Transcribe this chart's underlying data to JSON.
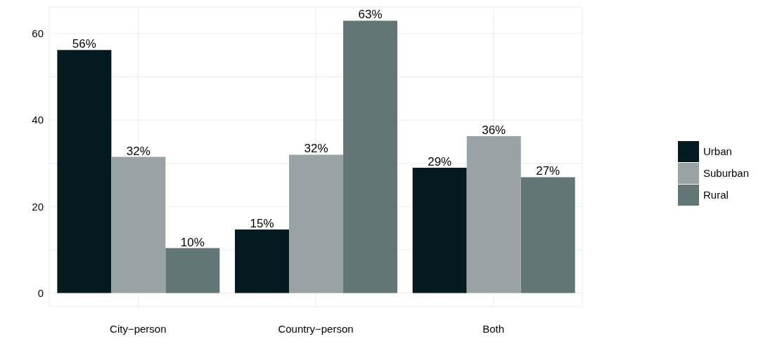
{
  "chart_data": {
    "type": "bar",
    "categories": [
      "City−person",
      "Country−person",
      "Both"
    ],
    "series": [
      {
        "name": "Urban",
        "color": "#021a20",
        "values": [
          56.2,
          14.7,
          29.0
        ],
        "value_labels": [
          "56%",
          "15%",
          "29%"
        ]
      },
      {
        "name": "Suburban",
        "color": "#99a3a6",
        "values": [
          31.5,
          32.0,
          36.3
        ],
        "value_labels": [
          "32%",
          "32%",
          "36%"
        ]
      },
      {
        "name": "Rural",
        "color": "#637677",
        "values": [
          10.4,
          63.0,
          26.8
        ],
        "value_labels": [
          "10%",
          "63%",
          "27%"
        ]
      }
    ],
    "ylim": [
      -3.15,
      66.15
    ],
    "yticks": [
      0,
      {
        "value": 10,
        "label": null
      },
      20,
      {
        "value": 30,
        "label": null
      },
      40,
      {
        "value": 50,
        "label": null
      },
      60
    ],
    "grid": true,
    "legend": "right"
  }
}
